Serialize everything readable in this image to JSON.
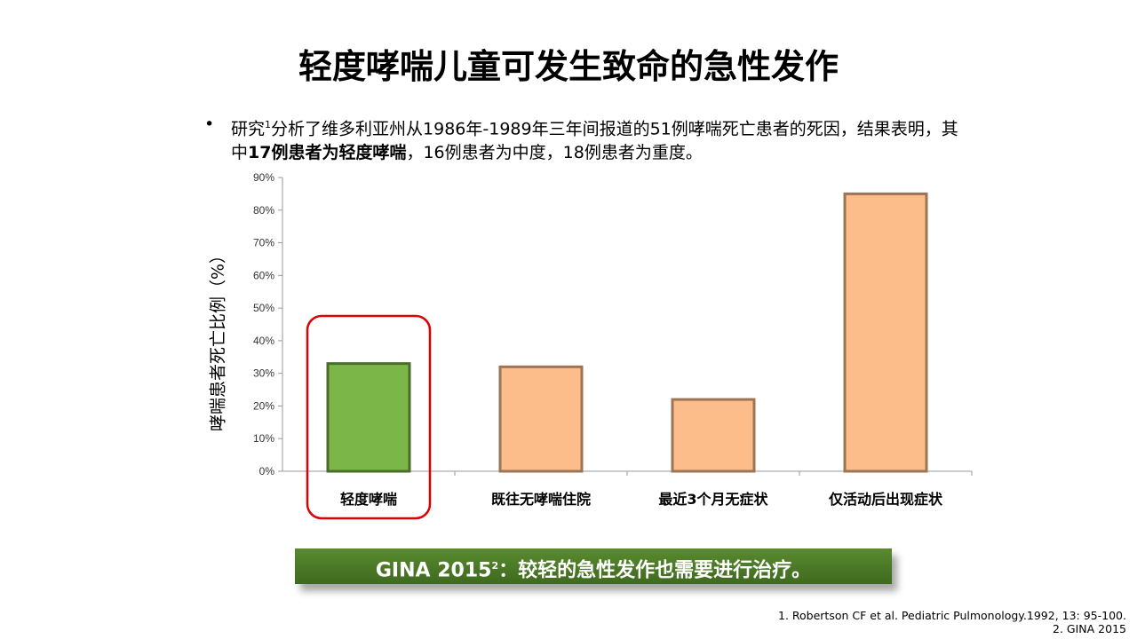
{
  "title": "轻度哮喘儿童可发生致命的急性发作",
  "bullet": {
    "symbol": "•",
    "part1": "研究",
    "sup1": "1",
    "part2": "分析了维多利亚州从1986年-1989年三年间报道的51例哮喘死亡患者的死因，结果表明，其中",
    "bold": "17例患者为轻度哮喘",
    "part3": "，16例患者为中度，18例患者为重度。"
  },
  "chart_data": {
    "type": "bar",
    "title": "",
    "xlabel": "",
    "ylabel": "哮喘患者死亡比例（%）",
    "categories": [
      "轻度哮喘",
      "既往无哮喘住院",
      "最近3个月无症状",
      "仅活动后出现症状"
    ],
    "values": [
      33,
      32,
      22,
      85
    ],
    "ylim": [
      0,
      90
    ],
    "yticks": [
      "0%",
      "10%",
      "20%",
      "30%",
      "40%",
      "50%",
      "60%",
      "70%",
      "80%",
      "90%"
    ],
    "colors": [
      "#7ab648",
      "#fdbd8a",
      "#fdbd8a",
      "#fdbd8a"
    ],
    "highlight_index": 0,
    "highlight_color": "#e00000",
    "grid": false
  },
  "banner": {
    "prefix": "GINA 2015",
    "sup": "2",
    "text": "：较轻的急性发作也需要进行治疗。"
  },
  "references": [
    "1. Robertson CF et al. Pediatric Pulmonology.1992, 13: 95-100.",
    "2. GINA 2015"
  ]
}
